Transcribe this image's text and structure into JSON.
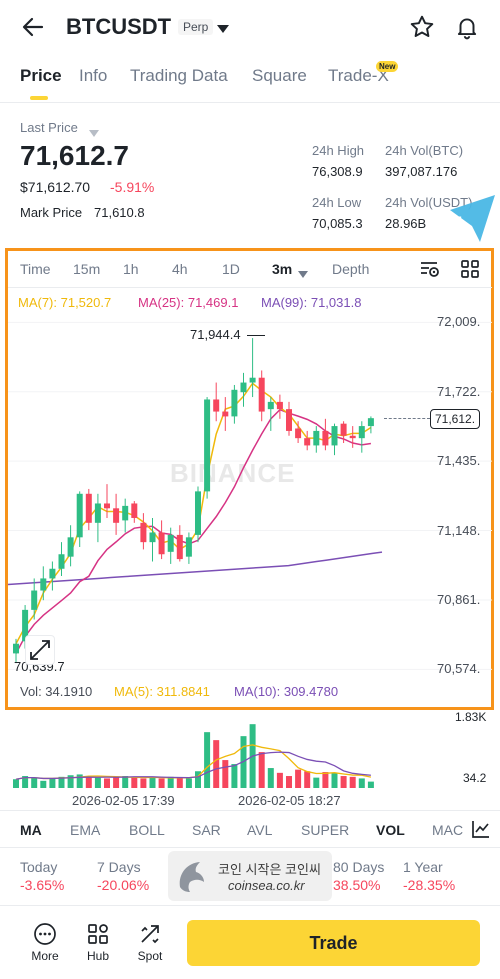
{
  "header": {
    "symbol": "BTCUSDT",
    "badge": "Perp"
  },
  "tabs": [
    {
      "label": "Price",
      "active": true
    },
    {
      "label": "Info"
    },
    {
      "label": "Trading Data"
    },
    {
      "label": "Square"
    },
    {
      "label": "Trade-X",
      "badge": "New"
    }
  ],
  "price": {
    "last_label": "Last Price",
    "last": "71,612.7",
    "usd": "$71,612.70",
    "change": "-5.91%",
    "mark_label": "Mark Price",
    "mark": "71,610.8"
  },
  "stats": {
    "high_label": "24h High",
    "high": "76,308.9",
    "volbtc_label": "24h Vol(BTC)",
    "volbtc": "397,087.176",
    "low_label": "24h Low",
    "low": "70,085.3",
    "volusdt_label": "24h Vol(USDT)",
    "volusdt": "28.96B"
  },
  "annotation": {
    "number": "1",
    "color": "#f7931a",
    "pointer_color": "#4ab7e5"
  },
  "chart_tabs": [
    "Time",
    "15m",
    "1h",
    "4h",
    "1D",
    "3m",
    "Depth"
  ],
  "chart_tab_active": "3m",
  "ma": {
    "ma7": "MA(7): 71,520.7",
    "ma25": "MA(25): 71,469.1",
    "ma99": "MA(99): 71,031.8"
  },
  "price_axis": [
    "72,009.",
    "71,722.",
    "71,435.",
    "71,148.",
    "70,861.",
    "70,574."
  ],
  "current_price_tag": "71,612.",
  "high_marker": "71,944.4",
  "low_marker": "70,639.7",
  "watermark": "BINANCE",
  "vol": {
    "vol": "Vol: 34.1910",
    "ma5": "MA(5): 311.8841",
    "ma10": "MA(10): 309.4780",
    "axis_top": "1.83K",
    "axis_bottom": "34.2"
  },
  "time_labels": [
    "2026-02-05 17:39",
    "2026-02-05 18:27"
  ],
  "indicators": [
    "MA",
    "EMA",
    "BOLL",
    "SAR",
    "AVL",
    "SUPER",
    "VOL",
    "MAC"
  ],
  "indicators_active": [
    "MA",
    "VOL"
  ],
  "performance": [
    {
      "label": "Today",
      "value": "-3.65%"
    },
    {
      "label": "7 Days",
      "value": "-20.06%"
    },
    {
      "label": "80 Days",
      "value": "38.50%"
    },
    {
      "label": "1 Year",
      "value": "-28.35%"
    }
  ],
  "overlay_ad": {
    "line1": "코인 시작은 코인씨",
    "line2": "coinsea.co.kr"
  },
  "bottom": {
    "more": "More",
    "hub": "Hub",
    "spot": "Spot",
    "trade": "Trade"
  },
  "colors": {
    "up": "#2ebd85",
    "down": "#f6465d",
    "ma7": "#f0b90b",
    "ma25": "#d63384",
    "ma99": "#7b4fb5",
    "accent": "#fcd535"
  },
  "chart_data": {
    "type": "candlestick",
    "candles": [
      [
        70640,
        70700,
        70600,
        70680
      ],
      [
        70690,
        70840,
        70660,
        70820
      ],
      [
        70820,
        70950,
        70780,
        70900
      ],
      [
        70900,
        71000,
        70860,
        70950
      ],
      [
        70950,
        71020,
        70900,
        70990
      ],
      [
        70990,
        71100,
        70960,
        71050
      ],
      [
        71040,
        71170,
        71000,
        71120
      ],
      [
        71120,
        71310,
        71080,
        71300
      ],
      [
        71300,
        71320,
        71150,
        71180
      ],
      [
        71180,
        71300,
        71100,
        71260
      ],
      [
        71260,
        71340,
        71200,
        71240
      ],
      [
        71240,
        71300,
        71130,
        71180
      ],
      [
        71190,
        71280,
        71140,
        71250
      ],
      [
        71260,
        71270,
        71180,
        71200
      ],
      [
        71180,
        71220,
        71070,
        71100
      ],
      [
        71100,
        71200,
        71020,
        71140
      ],
      [
        71140,
        71190,
        71030,
        71050
      ],
      [
        71060,
        71160,
        71010,
        71130
      ],
      [
        71130,
        71170,
        71020,
        71030
      ],
      [
        71040,
        71140,
        71010,
        71120
      ],
      [
        71130,
        71330,
        71100,
        71310
      ],
      [
        71310,
        71700,
        71280,
        71690
      ],
      [
        71690,
        71760,
        71600,
        71640
      ],
      [
        71640,
        71700,
        71560,
        71620
      ],
      [
        71620,
        71750,
        71590,
        71730
      ],
      [
        71720,
        71800,
        71660,
        71760
      ],
      [
        71760,
        71944,
        71700,
        71780
      ],
      [
        71780,
        71810,
        71600,
        71640
      ],
      [
        71650,
        71700,
        71560,
        71680
      ],
      [
        71680,
        71710,
        71610,
        71650
      ],
      [
        71650,
        71680,
        71540,
        71560
      ],
      [
        71570,
        71600,
        71510,
        71530
      ],
      [
        71530,
        71560,
        71480,
        71500
      ],
      [
        71500,
        71580,
        71470,
        71560
      ],
      [
        71560,
        71610,
        71480,
        71500
      ],
      [
        71500,
        71590,
        71460,
        71580
      ],
      [
        71590,
        71600,
        71510,
        71540
      ],
      [
        71540,
        71580,
        71490,
        71530
      ],
      [
        71530,
        71600,
        71470,
        71580
      ],
      [
        71580,
        71620,
        71550,
        71612.7
      ]
    ],
    "volume_max": 1830
  }
}
